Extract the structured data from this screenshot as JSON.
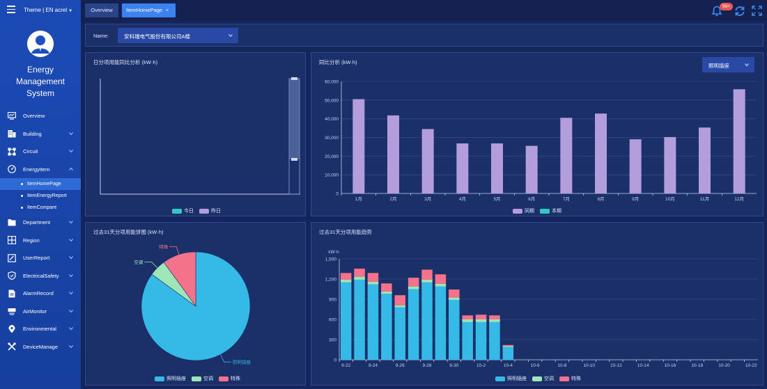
{
  "header": {
    "theme_label": "Theme | EN",
    "user": "acrel",
    "tabs": [
      {
        "label": "Overview",
        "active": false
      },
      {
        "label": "ItemHomePage",
        "active": true,
        "close": "×"
      }
    ],
    "notification_count": "99+"
  },
  "sidebar": {
    "system_title_line1": "Energy",
    "system_title_line2": "Management",
    "system_title_line3": "System",
    "items": [
      {
        "label": "Overview",
        "icon": "monitor-icon",
        "expandable": false
      },
      {
        "label": "Building",
        "icon": "building-icon",
        "expandable": true
      },
      {
        "label": "Circuit",
        "icon": "circuit-icon",
        "expandable": true
      },
      {
        "label": "EnergyItem",
        "icon": "energy-icon",
        "expandable": true,
        "expanded": true,
        "children": [
          {
            "label": "ItemHomePage",
            "active": true
          },
          {
            "label": "ItemEnergyReport",
            "active": false
          },
          {
            "label": "ItemCompare",
            "active": false
          }
        ]
      },
      {
        "label": "Department",
        "icon": "folder-icon",
        "expandable": true
      },
      {
        "label": "Region",
        "icon": "region-icon",
        "expandable": true
      },
      {
        "label": "UserReport",
        "icon": "report-icon",
        "expandable": true
      },
      {
        "label": "ElectricalSafety",
        "icon": "shield-icon",
        "expandable": true
      },
      {
        "label": "AlarmRecord",
        "icon": "alarm-icon",
        "expandable": true
      },
      {
        "label": "AirMonitor",
        "icon": "air-icon",
        "expandable": true
      },
      {
        "label": "Environmental",
        "icon": "location-icon",
        "expandable": true
      },
      {
        "label": "DeviceManage",
        "icon": "tools-icon",
        "expandable": true
      }
    ]
  },
  "filter": {
    "name_label": "Name:",
    "name_value": "安科瑞电气股份有限公司A楼"
  },
  "colors": {
    "today": "#37c6c6",
    "yesterday": "#b39ddb",
    "lighting": "#35b9e6",
    "aircon": "#9ee6b8",
    "special": "#f4728b",
    "grid": "#2d4c8e"
  },
  "panels": {
    "daily": {
      "title": "日分项用能同比分析 (kW·h)",
      "legend": [
        "今日",
        "昨日"
      ]
    },
    "monthly": {
      "title": "同比分析 (kW·h)",
      "select_value": "照明插座",
      "legend": [
        "同期",
        "本期"
      ]
    },
    "pie": {
      "title": "过去31天分项用能饼图 (kW·h)",
      "legend": [
        "照明插座",
        "空调",
        "特殊"
      ]
    },
    "trend": {
      "title": "过去31天分项用能趋势",
      "legend": [
        "照明插座",
        "空调",
        "特殊"
      ]
    }
  },
  "chart_data": [
    {
      "type": "bar",
      "id": "daily",
      "title": "日分项用能同比分析 (kW·h)",
      "series": [
        {
          "name": "今日",
          "values": []
        },
        {
          "name": "昨日",
          "values": []
        }
      ],
      "data_zoom": true
    },
    {
      "type": "bar",
      "id": "monthly",
      "title": "同比分析 (kW·h)",
      "categories": [
        "1月",
        "2月",
        "3月",
        "4月",
        "5月",
        "6月",
        "7月",
        "8月",
        "9月",
        "10月",
        "11月",
        "12月"
      ],
      "series": [
        {
          "name": "同期",
          "values": [
            50500,
            41800,
            34500,
            26800,
            26800,
            25500,
            40500,
            42800,
            29000,
            30200,
            35300,
            55800
          ]
        },
        {
          "name": "本期",
          "values": [
            0,
            0,
            0,
            0,
            0,
            0,
            0,
            0,
            0,
            0,
            0,
            0
          ]
        }
      ],
      "ylim": [
        0,
        60000
      ],
      "yticks": [
        "0",
        "10,000",
        "20,000",
        "30,000",
        "40,000",
        "50,000",
        "60,000"
      ],
      "grid": true,
      "legend_position": "bottom-center"
    },
    {
      "type": "pie",
      "id": "pie",
      "title": "过去31天分项用能饼图 (kW·h)",
      "labels": [
        "照明插座",
        "空调",
        "特殊"
      ],
      "values": [
        85,
        5,
        10
      ],
      "legend_position": "bottom-center"
    },
    {
      "type": "bar",
      "id": "trend",
      "title": "过去31天分项用能趋势",
      "ylabel": "kW·h",
      "x": [
        "9-22",
        "9-23",
        "9-24",
        "9-25",
        "9-26",
        "9-27",
        "9-28",
        "9-29",
        "9-30",
        "10-1",
        "10-2",
        "10-3",
        "10-4",
        "10-5",
        "10-6",
        "10-7",
        "10-8",
        "10-9",
        "10-10",
        "10-11",
        "10-12",
        "10-13",
        "10-14",
        "10-15",
        "10-16",
        "10-17",
        "10-18",
        "10-19",
        "10-20",
        "10-21",
        "10-22"
      ],
      "xtick_labels": [
        "9-22",
        "9-24",
        "9-26",
        "9-28",
        "9-30",
        "10-2",
        "10-4",
        "10-6",
        "10-8",
        "10-10",
        "10-12",
        "10-14",
        "10-16",
        "10-18",
        "10-20",
        "10-22"
      ],
      "stacked": true,
      "series": [
        {
          "name": "照明插座",
          "values": [
            1150,
            1190,
            1120,
            980,
            780,
            1050,
            1150,
            1090,
            890,
            560,
            560,
            560,
            190,
            0,
            0,
            0,
            0,
            0,
            0,
            0,
            0,
            0,
            0,
            0,
            0,
            0,
            0,
            0,
            0,
            0,
            0
          ]
        },
        {
          "name": "空调",
          "values": [
            40,
            45,
            40,
            35,
            30,
            40,
            40,
            40,
            35,
            40,
            40,
            40,
            15,
            0,
            0,
            0,
            0,
            0,
            0,
            0,
            0,
            0,
            0,
            0,
            0,
            0,
            0,
            0,
            0,
            0,
            0
          ]
        },
        {
          "name": "特殊",
          "values": [
            100,
            120,
            130,
            120,
            150,
            130,
            150,
            140,
            120,
            60,
            70,
            60,
            15,
            0,
            0,
            0,
            0,
            0,
            0,
            0,
            0,
            0,
            0,
            0,
            0,
            0,
            0,
            0,
            0,
            0,
            0
          ]
        }
      ],
      "ylim": [
        0,
        1500
      ],
      "yticks": [
        "0",
        "300",
        "600",
        "900",
        "1,200",
        "1,500"
      ],
      "grid": true,
      "legend_position": "bottom-center"
    }
  ]
}
